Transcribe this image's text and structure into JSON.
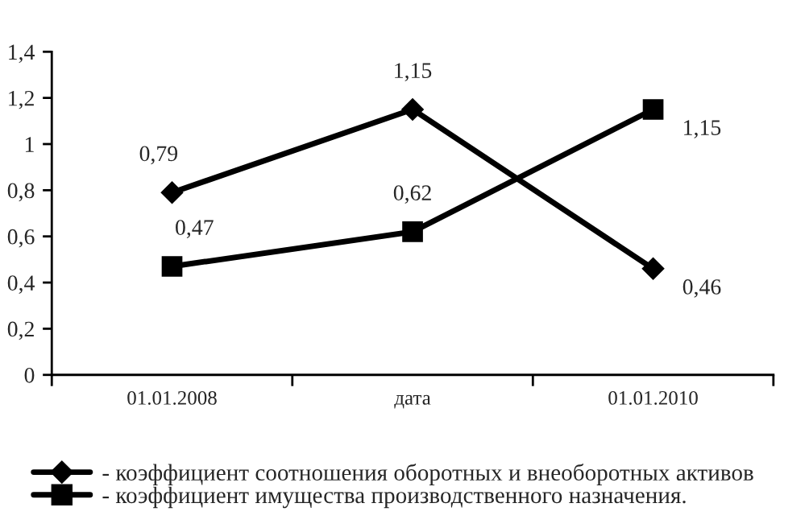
{
  "chart_data": {
    "type": "line",
    "categories": [
      "01.01.2008",
      "дата",
      "01.01.2010"
    ],
    "series": [
      {
        "name": "- коэффициент соотношения оборотных и внеоборотных активов",
        "color": "#000000",
        "marker": "diamond",
        "values": [
          0.79,
          1.15,
          0.46
        ],
        "value_labels": [
          "0,79",
          "1,15",
          "0,46"
        ]
      },
      {
        "name": "- коэффициент имущества производственного назначения.",
        "color": "#000000",
        "marker": "square",
        "values": [
          0.47,
          0.62,
          1.15
        ],
        "value_labels": [
          "0,47",
          "0,62",
          "1,15"
        ]
      }
    ],
    "ylim": [
      0,
      1.4
    ],
    "yticks": [
      0,
      {
        "value": 0.2,
        "label": "0,2"
      },
      {
        "value": 0.4,
        "label": "0,4"
      },
      {
        "value": 0.6,
        "label": "0,6"
      },
      {
        "value": 0.8,
        "label": "0,8"
      },
      1,
      {
        "value": 1.2,
        "label": "1,2"
      },
      {
        "value": 1.4,
        "label": "1,4"
      }
    ],
    "line_style": "solid",
    "grid": false,
    "legend": "bottom"
  }
}
